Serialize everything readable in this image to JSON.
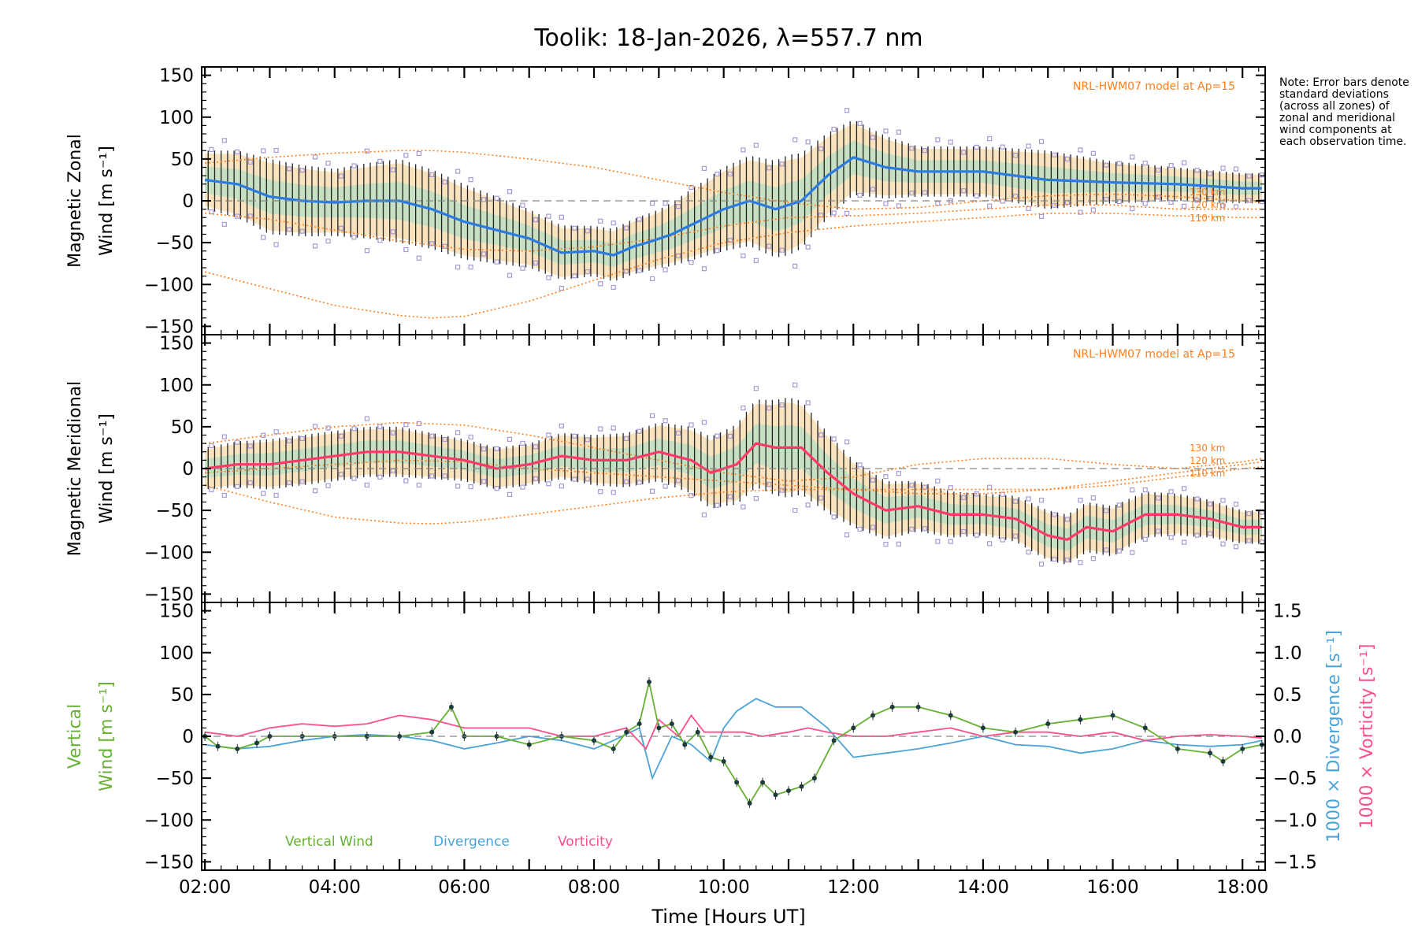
{
  "title": "Toolik: 18-Jan-2026, λ=557.7 nm",
  "note": "Note: Error bars denote standard deviations (across all zones) of zonal and meridional wind components at each observation time.",
  "xaxis": {
    "label": "Time [Hours UT]",
    "ticks": [
      "02:00",
      "04:00",
      "06:00",
      "08:00",
      "10:00",
      "12:00",
      "14:00",
      "16:00",
      "18:00"
    ],
    "tick_hours": [
      2,
      4,
      6,
      8,
      10,
      12,
      14,
      16,
      18
    ],
    "range": [
      1.95,
      18.35
    ]
  },
  "colors": {
    "zonal_mean": "#2b7be0",
    "meridional_mean": "#ff3a6a",
    "vertical": "#66b032",
    "divergence": "#4aa3d8",
    "vorticity": "#ff4f88",
    "model": "#ff7f1e",
    "errorbar": "#000000",
    "scatter": "#a79ad6"
  },
  "panels": {
    "zonal": {
      "ylabel_line1": "Magnetic Zonal",
      "ylabel_line2": "Wind [m s⁻¹]",
      "model_label": "NRL-HWM07 model at Ap=15",
      "alt_labels": [
        "130 km",
        "120 km",
        "110 km"
      ]
    },
    "meridional": {
      "ylabel_line1": "Magnetic Meridional",
      "ylabel_line2": "Wind [m s⁻¹]",
      "model_label": "NRL-HWM07 model at Ap=15",
      "alt_labels": [
        "130 km",
        "120 km",
        "110 km"
      ]
    },
    "vertical": {
      "ylabel_line1": "Vertical",
      "ylabel_line2": "Wind [m s⁻¹]",
      "right_label_div": "1000 × Divergence [s⁻¹]",
      "right_label_vort": "1000 × Vorticity [s⁻¹]",
      "legend": [
        "Vertical Wind",
        "Divergence",
        "Vorticity"
      ]
    }
  },
  "chart_data": [
    {
      "type": "line",
      "name": "Magnetic Zonal Wind",
      "ylabel": "Magnetic Zonal Wind [m s⁻¹]",
      "ylim": [
        -160,
        160
      ],
      "yticks": [
        -150,
        -100,
        -50,
        0,
        50,
        100,
        150
      ],
      "series": [
        {
          "name": "Zonal mean",
          "x": [
            2,
            2.5,
            3,
            3.5,
            4,
            4.5,
            5,
            5.5,
            6,
            6.5,
            7,
            7.5,
            8,
            8.3,
            8.6,
            8.9,
            9.2,
            9.6,
            10,
            10.4,
            10.8,
            11.2,
            11.6,
            12,
            12.5,
            13,
            14,
            15,
            16,
            17,
            18,
            18.3
          ],
          "y": [
            25,
            20,
            5,
            0,
            -2,
            0,
            0,
            -10,
            -25,
            -35,
            -45,
            -62,
            -60,
            -65,
            -55,
            -48,
            -40,
            -25,
            -10,
            0,
            -10,
            0,
            30,
            52,
            40,
            35,
            35,
            25,
            22,
            20,
            15,
            15
          ]
        },
        {
          "name": "Error bar (std)",
          "x": [
            2,
            3,
            4,
            5,
            6,
            7,
            8,
            9,
            10,
            11,
            12,
            13,
            14,
            15,
            16,
            17,
            18
          ],
          "y": [
            35,
            45,
            40,
            50,
            45,
            35,
            30,
            35,
            50,
            60,
            45,
            30,
            30,
            35,
            25,
            20,
            18
          ]
        },
        {
          "name": "130 km",
          "x": [
            2,
            3,
            4,
            5,
            5.5,
            6,
            7,
            8,
            9,
            10,
            11,
            12,
            13,
            14,
            15,
            16,
            17,
            18,
            18.3
          ],
          "y": [
            45,
            52,
            57,
            60,
            60,
            58,
            50,
            40,
            25,
            10,
            -2,
            -10,
            -8,
            0,
            6,
            8,
            5,
            0,
            -2
          ]
        },
        {
          "name": "120 km",
          "x": [
            2,
            3,
            4,
            5,
            6,
            7,
            8,
            9,
            10,
            11,
            12,
            13,
            14,
            15,
            16,
            17,
            18,
            18.3
          ],
          "y": [
            -15,
            -22,
            -35,
            -48,
            -58,
            -60,
            -55,
            -45,
            -30,
            -20,
            -18,
            -15,
            -10,
            -5,
            -5,
            -10,
            -10,
            -10
          ]
        },
        {
          "name": "110 km",
          "x": [
            2,
            3,
            4,
            5,
            5.5,
            6,
            7,
            8,
            9,
            10,
            11,
            12,
            13,
            14,
            15,
            16,
            17,
            18,
            18.3
          ],
          "y": [
            -85,
            -105,
            -125,
            -137,
            -140,
            -138,
            -120,
            -95,
            -70,
            -50,
            -38,
            -30,
            -25,
            -20,
            -15,
            -15,
            -18,
            -20,
            -20
          ]
        }
      ]
    },
    {
      "type": "line",
      "name": "Magnetic Meridional Wind",
      "ylabel": "Magnetic Meridional Wind [m s⁻¹]",
      "ylim": [
        -160,
        160
      ],
      "yticks": [
        -150,
        -100,
        -50,
        0,
        50,
        100,
        150
      ],
      "series": [
        {
          "name": "Meridional mean",
          "x": [
            2,
            2.5,
            3,
            3.5,
            4,
            4.5,
            5,
            5.5,
            6,
            6.5,
            7,
            7.5,
            8,
            8.5,
            9,
            9.5,
            9.8,
            10.2,
            10.5,
            10.8,
            11.2,
            11.6,
            12,
            12.5,
            13,
            13.5,
            14,
            14.5,
            15,
            15.3,
            15.6,
            16,
            16.5,
            17,
            17.5,
            18,
            18.3
          ],
          "y": [
            0,
            5,
            5,
            10,
            15,
            20,
            20,
            15,
            10,
            0,
            5,
            15,
            10,
            10,
            20,
            10,
            -5,
            5,
            30,
            25,
            25,
            -5,
            -30,
            -50,
            -45,
            -55,
            -55,
            -60,
            -80,
            -85,
            -70,
            -75,
            -55,
            -55,
            -60,
            -70,
            -70
          ]
        },
        {
          "name": "Error bar (std)",
          "x": [
            2,
            3,
            4,
            5,
            6,
            7,
            8,
            9,
            10,
            11,
            12,
            13,
            14,
            15,
            16,
            17,
            18
          ],
          "y": [
            25,
            30,
            30,
            30,
            25,
            25,
            30,
            35,
            45,
            60,
            40,
            30,
            25,
            30,
            30,
            25,
            20
          ]
        },
        {
          "name": "130 km",
          "x": [
            2,
            3,
            4,
            5,
            6,
            7,
            8,
            9,
            10,
            11,
            12,
            13,
            14,
            15,
            16,
            17,
            18,
            18.3
          ],
          "y": [
            30,
            40,
            50,
            55,
            52,
            40,
            25,
            10,
            -5,
            -15,
            -10,
            5,
            12,
            12,
            5,
            0,
            8,
            12
          ]
        },
        {
          "name": "120 km",
          "x": [
            2,
            3,
            4,
            5,
            6,
            7,
            8,
            9,
            10,
            11,
            12,
            13,
            14,
            15,
            16,
            17,
            18,
            18.3
          ],
          "y": [
            -5,
            0,
            5,
            10,
            8,
            0,
            -5,
            -10,
            -15,
            -20,
            -25,
            -30,
            -30,
            -25,
            -15,
            -5,
            5,
            8
          ]
        },
        {
          "name": "110 km",
          "x": [
            2,
            3,
            4,
            5,
            5.5,
            6,
            7,
            8,
            9,
            10,
            11,
            12,
            13,
            14,
            15,
            16,
            17,
            18,
            18.3
          ],
          "y": [
            -20,
            -40,
            -58,
            -65,
            -66,
            -64,
            -55,
            -45,
            -35,
            -28,
            -25,
            -25,
            -25,
            -25,
            -25,
            -20,
            -10,
            0,
            2
          ]
        }
      ]
    },
    {
      "type": "line",
      "name": "Vertical Wind, Divergence, Vorticity",
      "ylabel": "Vertical Wind [m s⁻¹]",
      "ylim": [
        -160,
        160
      ],
      "yticks": [
        -150,
        -100,
        -50,
        0,
        50,
        100,
        150
      ],
      "y2label": "1000 × Divergence / Vorticity [s⁻¹]",
      "y2lim": [
        -1.6,
        1.6
      ],
      "y2ticks": [
        -1.5,
        -1.0,
        -0.5,
        0.0,
        0.5,
        1.0,
        1.5
      ],
      "y2ticklabels": [
        "−1.5",
        "−1.0",
        "−0.5",
        "0.0",
        "0.5",
        "1.0",
        "1.5"
      ],
      "series": [
        {
          "name": "Vertical Wind",
          "axis": "left",
          "x": [
            2,
            2.2,
            2.5,
            2.8,
            3,
            3.5,
            4,
            4.5,
            5,
            5.5,
            5.8,
            6,
            6.5,
            7,
            7.5,
            8,
            8.3,
            8.5,
            8.7,
            8.85,
            9,
            9.2,
            9.4,
            9.6,
            9.8,
            10,
            10.2,
            10.4,
            10.6,
            10.8,
            11,
            11.2,
            11.4,
            11.7,
            12,
            12.3,
            12.6,
            13,
            13.5,
            14,
            14.5,
            15,
            15.5,
            16,
            16.5,
            17,
            17.5,
            17.7,
            18,
            18.3
          ],
          "y": [
            0,
            -12,
            -15,
            -8,
            0,
            0,
            0,
            0,
            0,
            5,
            35,
            0,
            0,
            -10,
            0,
            -5,
            -15,
            5,
            15,
            65,
            10,
            15,
            -10,
            5,
            -25,
            -30,
            -55,
            -80,
            -55,
            -70,
            -65,
            -60,
            -50,
            -5,
            10,
            25,
            35,
            35,
            25,
            10,
            5,
            15,
            20,
            25,
            10,
            -15,
            -20,
            -30,
            -15,
            -10
          ]
        },
        {
          "name": "Divergence",
          "axis": "right",
          "x": [
            2,
            2.5,
            3,
            3.5,
            4,
            4.5,
            5,
            5.5,
            6,
            6.5,
            7,
            7.5,
            8,
            8.3,
            8.7,
            8.9,
            9.2,
            9.5,
            9.8,
            10,
            10.2,
            10.5,
            10.8,
            11.2,
            11.6,
            12,
            12.5,
            13,
            13.5,
            14,
            14.5,
            15,
            15.5,
            16,
            16.5,
            17,
            17.5,
            18,
            18.3
          ],
          "y": [
            -0.1,
            -0.15,
            -0.12,
            -0.05,
            0.0,
            0.02,
            0.0,
            -0.05,
            -0.15,
            -0.08,
            0.0,
            -0.05,
            -0.15,
            -0.05,
            0.1,
            -0.5,
            0.0,
            -0.1,
            -0.3,
            0.1,
            0.3,
            0.45,
            0.35,
            0.35,
            0.1,
            -0.25,
            -0.2,
            -0.15,
            -0.08,
            0.0,
            -0.1,
            -0.12,
            -0.2,
            -0.15,
            -0.05,
            -0.1,
            -0.12,
            -0.1,
            -0.05
          ]
        },
        {
          "name": "Vorticity",
          "axis": "right",
          "x": [
            2,
            2.5,
            3,
            3.5,
            4,
            4.5,
            5,
            5.5,
            6,
            6.5,
            7,
            7.5,
            8,
            8.5,
            8.8,
            9,
            9.3,
            9.5,
            9.7,
            10,
            10.3,
            10.6,
            11,
            11.3,
            11.6,
            12,
            12.5,
            13,
            13.5,
            14,
            14.5,
            15,
            15.5,
            16,
            16.5,
            17,
            17.5,
            18,
            18.3
          ],
          "y": [
            0.05,
            0.0,
            0.1,
            0.15,
            0.12,
            0.15,
            0.25,
            0.2,
            0.1,
            0.1,
            0.1,
            0.0,
            0.0,
            0.1,
            -0.15,
            0.2,
            0.0,
            0.25,
            0.05,
            0.05,
            0.05,
            0.0,
            0.05,
            0.1,
            0.05,
            0.0,
            0.0,
            0.05,
            0.1,
            0.0,
            0.05,
            0.05,
            0.0,
            0.05,
            -0.05,
            0.0,
            0.02,
            0.0,
            -0.02
          ]
        }
      ]
    }
  ]
}
